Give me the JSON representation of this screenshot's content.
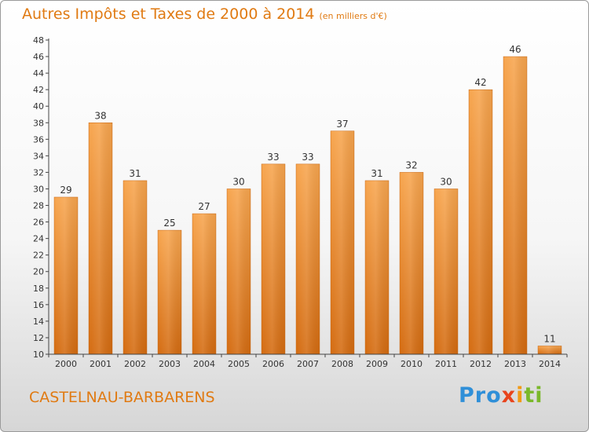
{
  "chart_data": {
    "type": "bar",
    "title": "Autres Impôts et Taxes de 2000 à 2014",
    "subtitle": "(en milliers d'€)",
    "categories": [
      "2000",
      "2001",
      "2002",
      "2003",
      "2004",
      "2005",
      "2006",
      "2007",
      "2008",
      "2009",
      "2010",
      "2011",
      "2012",
      "2013",
      "2014"
    ],
    "values": [
      29,
      38,
      31,
      25,
      27,
      30,
      33,
      33,
      37,
      31,
      32,
      30,
      42,
      46,
      11
    ],
    "ylim": [
      10,
      48
    ],
    "ytick_step": 2,
    "grid": false,
    "bar_color": "#f0902a",
    "text_color": "#e07a12"
  },
  "footer": {
    "place": "CASTELNAU-BARBARENS",
    "logo": {
      "p1": "Pro",
      "p2": "x",
      "p3": "i",
      "p4": "ti"
    }
  }
}
